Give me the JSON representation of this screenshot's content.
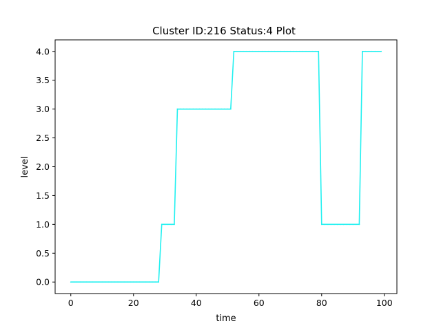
{
  "chart_data": {
    "type": "line",
    "title": "Cluster ID:216 Status:4 Plot",
    "xlabel": "time",
    "ylabel": "level",
    "xlim": [
      -5,
      104
    ],
    "ylim": [
      -0.2,
      4.2
    ],
    "xticks": [
      0,
      20,
      40,
      60,
      80,
      100
    ],
    "yticks": [
      0.0,
      0.5,
      1.0,
      1.5,
      2.0,
      2.5,
      3.0,
      3.5,
      4.0
    ],
    "grid": false,
    "legend": "none",
    "series": [
      {
        "color": "#22f0f0",
        "segments": [
          {
            "from": 0,
            "to": 28,
            "level": 0
          },
          {
            "from": 29,
            "to": 33,
            "level": 1
          },
          {
            "from": 34,
            "to": 51,
            "level": 3
          },
          {
            "from": 52,
            "to": 79,
            "level": 4
          },
          {
            "from": 80,
            "to": 92,
            "level": 1
          },
          {
            "from": 93,
            "to": 99,
            "level": 4
          }
        ]
      }
    ]
  }
}
